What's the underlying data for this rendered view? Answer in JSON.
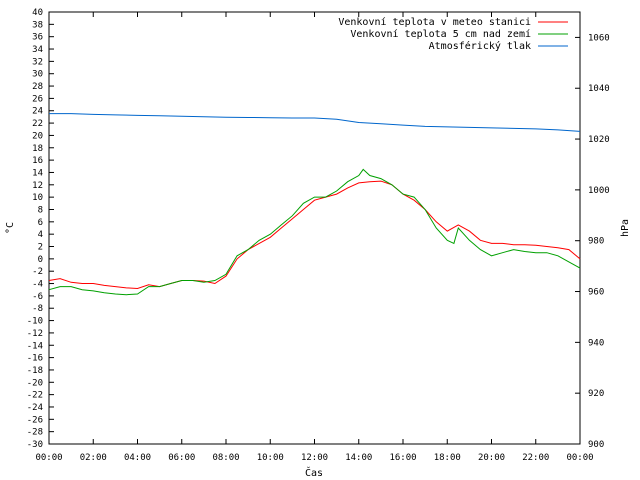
{
  "chart_data": {
    "type": "line",
    "title": "",
    "xlabel": "Čas",
    "ylabel": "°C",
    "y2label": "hPa",
    "x_ticks": [
      "00:00",
      "02:00",
      "04:00",
      "06:00",
      "08:00",
      "10:00",
      "12:00",
      "14:00",
      "16:00",
      "18:00",
      "20:00",
      "22:00",
      "00:00"
    ],
    "x_range_hours": [
      0,
      24
    ],
    "ylim": [
      -30,
      40
    ],
    "y_ticks": [
      40,
      38,
      36,
      34,
      32,
      30,
      28,
      26,
      24,
      22,
      20,
      18,
      16,
      14,
      12,
      10,
      8,
      6,
      4,
      2,
      0,
      -2,
      -4,
      -6,
      -8,
      -10,
      -12,
      -14,
      -16,
      -18,
      -20,
      -22,
      -24,
      -26,
      -28,
      -30
    ],
    "y2lim": [
      900,
      1070
    ],
    "y2_ticks": [
      1060,
      1040,
      1020,
      1000,
      980,
      960,
      940,
      920,
      900
    ],
    "grid": false,
    "legend_position": "top-right",
    "series": [
      {
        "name": "Venkovní teplota v meteo stanici",
        "color": "#ff0000",
        "axis": "left",
        "x": [
          0,
          0.5,
          1,
          1.5,
          2,
          2.5,
          3,
          3.5,
          4,
          4.5,
          5,
          5.5,
          6,
          6.5,
          7,
          7.5,
          8,
          8.5,
          9,
          9.5,
          10,
          10.5,
          11,
          11.5,
          12,
          12.5,
          13,
          13.5,
          14,
          14.5,
          15,
          15.5,
          16,
          16.5,
          17,
          17.5,
          18,
          18.5,
          19,
          19.5,
          20,
          20.5,
          21,
          21.5,
          22,
          22.5,
          23,
          23.5,
          24
        ],
        "values": [
          -3.5,
          -3.2,
          -3.8,
          -4.0,
          -4.0,
          -4.3,
          -4.5,
          -4.7,
          -4.8,
          -4.2,
          -4.5,
          -4.0,
          -3.5,
          -3.5,
          -3.6,
          -4.0,
          -2.8,
          0,
          1.5,
          2.5,
          3.5,
          5,
          6.5,
          8,
          9.5,
          10,
          10.5,
          11.5,
          12.3,
          12.5,
          12.6,
          12,
          10.5,
          9.5,
          8,
          6,
          4.5,
          5.5,
          4.5,
          3,
          2.5,
          2.5,
          2.3,
          2.3,
          2.2,
          2.0,
          1.8,
          1.5,
          0
        ]
      },
      {
        "name": "Venkovní teplota 5 cm nad zemí",
        "color": "#00a000",
        "axis": "left",
        "x": [
          0,
          0.5,
          1,
          1.5,
          2,
          2.5,
          3,
          3.5,
          4,
          4.5,
          5,
          5.5,
          6,
          6.5,
          7,
          7.5,
          8,
          8.5,
          9,
          9.5,
          10,
          10.5,
          11,
          11.5,
          12,
          12.5,
          13,
          13.5,
          14,
          14.2,
          14.5,
          15,
          15.5,
          16,
          16.5,
          17,
          17.5,
          18,
          18.3,
          18.5,
          19,
          19.5,
          20,
          20.5,
          21,
          21.5,
          22,
          22.5,
          23,
          23.5,
          24
        ],
        "values": [
          -5,
          -4.5,
          -4.5,
          -5,
          -5.2,
          -5.5,
          -5.7,
          -5.8,
          -5.7,
          -4.5,
          -4.5,
          -4.0,
          -3.5,
          -3.5,
          -3.8,
          -3.5,
          -2.5,
          0.5,
          1.5,
          3,
          4,
          5.5,
          7,
          9,
          10,
          10,
          11,
          12.5,
          13.5,
          14.5,
          13.5,
          13,
          12,
          10.5,
          10,
          8,
          5,
          3,
          2.5,
          5,
          3,
          1.5,
          0.5,
          1,
          1.5,
          1.2,
          1,
          1,
          0.5,
          -0.5,
          -1.5
        ]
      },
      {
        "name": "Atmosférický tlak",
        "color": "#0066cc",
        "axis": "right",
        "x": [
          0,
          1,
          2,
          3,
          4,
          5,
          6,
          7,
          8,
          9,
          10,
          11,
          12,
          13,
          14,
          15,
          16,
          17,
          18,
          19,
          20,
          21,
          22,
          23,
          24
        ],
        "values": [
          1030,
          1030,
          1029.7,
          1029.5,
          1029.3,
          1029.2,
          1029,
          1028.8,
          1028.6,
          1028.5,
          1028.4,
          1028.3,
          1028.3,
          1027.8,
          1026.5,
          1026,
          1025.5,
          1025,
          1024.8,
          1024.6,
          1024.4,
          1024.2,
          1024,
          1023.6,
          1023
        ]
      }
    ]
  }
}
